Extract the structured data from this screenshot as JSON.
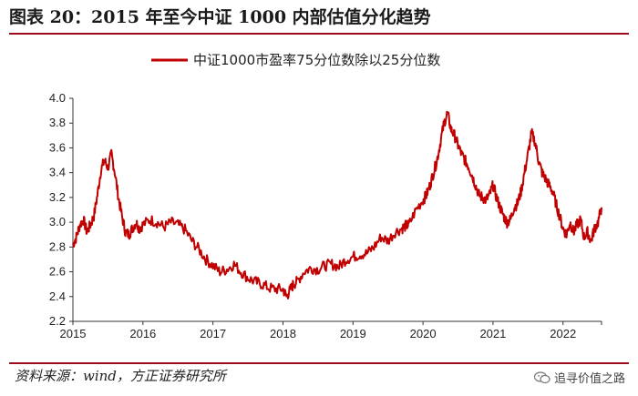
{
  "header": {
    "title": "图表 20：2015 年至今中证 1000 内部估值分化趋势"
  },
  "footer": {
    "source": "资料来源：wind，方正证券研究所",
    "watermark_text": "追寻价值之路",
    "watermark_icon": "wechat-icon"
  },
  "colors": {
    "accent": "#9c0b1a",
    "series": "#c00000"
  },
  "chart_data": {
    "type": "line",
    "title": "",
    "xlabel": "",
    "ylabel": "",
    "x_range": [
      2015.0,
      2022.55
    ],
    "ylim": [
      2.2,
      4.0
    ],
    "y_ticks": [
      "4.0",
      "3.8",
      "3.6",
      "3.4",
      "3.2",
      "3.0",
      "2.8",
      "2.6",
      "2.4",
      "2.2"
    ],
    "y_tick_values": [
      4.0,
      3.8,
      3.6,
      3.4,
      3.2,
      3.0,
      2.8,
      2.6,
      2.4,
      2.2
    ],
    "x_ticks": [
      "2015",
      "2016",
      "2017",
      "2018",
      "2019",
      "2020",
      "2021",
      "2022"
    ],
    "x_tick_values": [
      2015,
      2016,
      2017,
      2018,
      2019,
      2020,
      2021,
      2022
    ],
    "grid": false,
    "legend": "top-center",
    "series": [
      {
        "name": "中证1000市盈率75分位数除以25分位数",
        "x": [
          2015.0,
          2015.05,
          2015.1,
          2015.15,
          2015.2,
          2015.25,
          2015.3,
          2015.35,
          2015.4,
          2015.45,
          2015.5,
          2015.55,
          2015.6,
          2015.65,
          2015.7,
          2015.75,
          2015.8,
          2015.85,
          2015.9,
          2015.95,
          2016.0,
          2016.1,
          2016.2,
          2016.3,
          2016.4,
          2016.5,
          2016.6,
          2016.7,
          2016.8,
          2016.9,
          2017.0,
          2017.1,
          2017.2,
          2017.3,
          2017.4,
          2017.5,
          2017.6,
          2017.7,
          2017.8,
          2017.9,
          2018.0,
          2018.05,
          2018.1,
          2018.15,
          2018.2,
          2018.3,
          2018.4,
          2018.5,
          2018.6,
          2018.7,
          2018.8,
          2018.9,
          2019.0,
          2019.1,
          2019.2,
          2019.3,
          2019.4,
          2019.5,
          2019.6,
          2019.7,
          2019.75,
          2019.8,
          2019.9,
          2020.0,
          2020.05,
          2020.1,
          2020.15,
          2020.2,
          2020.25,
          2020.3,
          2020.35,
          2020.4,
          2020.45,
          2020.5,
          2020.55,
          2020.6,
          2020.65,
          2020.7,
          2020.75,
          2020.8,
          2020.85,
          2020.9,
          2020.95,
          2021.0,
          2021.05,
          2021.1,
          2021.15,
          2021.2,
          2021.25,
          2021.3,
          2021.35,
          2021.4,
          2021.45,
          2021.5,
          2021.55,
          2021.6,
          2021.65,
          2021.7,
          2021.75,
          2021.8,
          2021.85,
          2021.9,
          2021.95,
          2022.0,
          2022.05,
          2022.1,
          2022.15,
          2022.2,
          2022.25,
          2022.3,
          2022.35,
          2022.4,
          2022.45,
          2022.5,
          2022.55
        ],
        "y": [
          2.82,
          2.88,
          2.98,
          3.02,
          2.92,
          2.98,
          3.05,
          3.22,
          3.42,
          3.5,
          3.44,
          3.55,
          3.4,
          3.2,
          3.05,
          2.92,
          2.9,
          2.95,
          3.0,
          2.95,
          2.98,
          3.02,
          3.0,
          2.96,
          3.0,
          2.98,
          2.94,
          2.85,
          2.78,
          2.7,
          2.65,
          2.6,
          2.62,
          2.66,
          2.6,
          2.55,
          2.52,
          2.5,
          2.47,
          2.46,
          2.46,
          2.4,
          2.45,
          2.5,
          2.52,
          2.6,
          2.63,
          2.62,
          2.65,
          2.66,
          2.64,
          2.7,
          2.72,
          2.74,
          2.75,
          2.8,
          2.88,
          2.85,
          2.92,
          2.95,
          2.97,
          2.98,
          3.1,
          3.18,
          3.22,
          3.3,
          3.4,
          3.5,
          3.65,
          3.8,
          3.88,
          3.75,
          3.7,
          3.62,
          3.55,
          3.5,
          3.45,
          3.38,
          3.3,
          3.22,
          3.2,
          3.18,
          3.22,
          3.3,
          3.2,
          3.12,
          3.05,
          3.0,
          3.02,
          3.12,
          3.15,
          3.25,
          3.4,
          3.55,
          3.72,
          3.65,
          3.5,
          3.4,
          3.35,
          3.3,
          3.25,
          3.15,
          3.05,
          2.95,
          2.9,
          3.0,
          2.92,
          2.98,
          3.02,
          2.88,
          2.92,
          2.85,
          2.95,
          3.0,
          3.12
        ]
      }
    ]
  }
}
